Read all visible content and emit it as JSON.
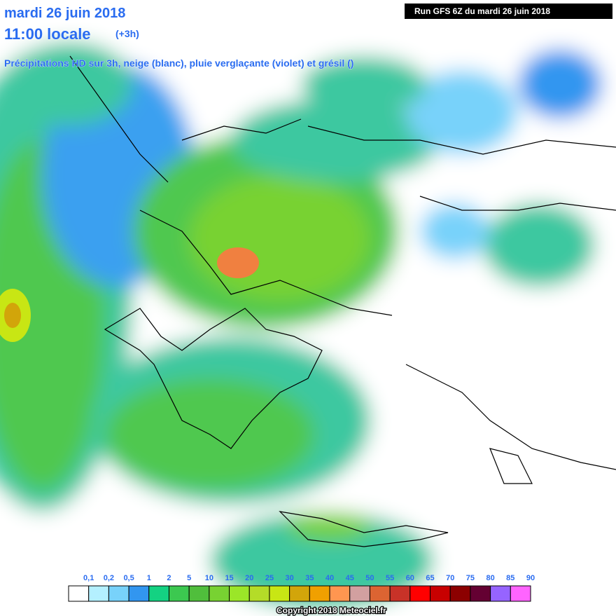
{
  "header": {
    "date": "mardi 26 juin 2018",
    "time": "11:00 locale",
    "offset": "(+3h)",
    "subtitle": "Précipitations HD sur 3h, neige (blanc), pluie verglaçante (violet) et grésil ()",
    "run": "Run GFS 6Z du mardi 26 juin 2018"
  },
  "legend": {
    "labels": [
      "0,1",
      "0,2",
      "0,5",
      "1",
      "2",
      "5",
      "10",
      "15",
      "20",
      "25",
      "30",
      "35",
      "40",
      "45",
      "50",
      "55",
      "60",
      "65",
      "70",
      "75",
      "80",
      "85",
      "90"
    ],
    "colors": [
      "#ffffff",
      "#b4f0ff",
      "#78d2fa",
      "#3296f0",
      "#14d282",
      "#3cc850",
      "#50be3c",
      "#78d232",
      "#9be628",
      "#b4dc28",
      "#c8e614",
      "#d2a50a",
      "#f0a000",
      "#ff9650",
      "#d2a0a0",
      "#dc6432",
      "#c83228",
      "#ff0000",
      "#c80000",
      "#8c0000",
      "#640032",
      "#9664ff",
      "#ff64ff"
    ]
  },
  "footer": {
    "copyright": "Copyright 2018 Meteociel.fr"
  }
}
